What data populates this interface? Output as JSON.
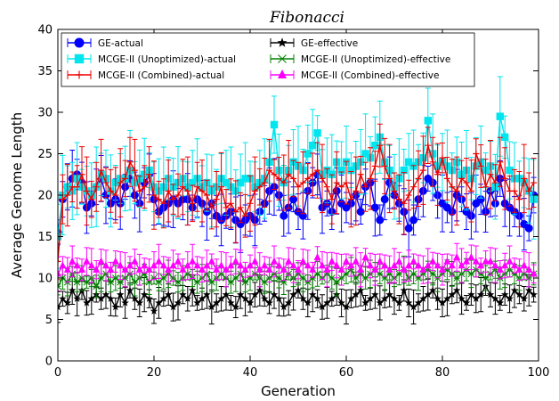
{
  "chart_data": {
    "type": "line",
    "title": "Fibonacci",
    "xlabel": "Generation",
    "ylabel": "Average Genome Length",
    "xlim": [
      0,
      100
    ],
    "ylim": [
      0,
      40
    ],
    "xticks": [
      0,
      20,
      40,
      60,
      80,
      100
    ],
    "yticks": [
      0,
      5,
      10,
      15,
      20,
      25,
      30,
      35,
      40
    ],
    "grid": false,
    "legend_position": "top",
    "x": [
      0,
      1,
      2,
      3,
      4,
      5,
      6,
      7,
      8,
      9,
      10,
      11,
      12,
      13,
      14,
      15,
      16,
      17,
      18,
      19,
      20,
      21,
      22,
      23,
      24,
      25,
      26,
      27,
      28,
      29,
      30,
      31,
      32,
      33,
      34,
      35,
      36,
      37,
      38,
      39,
      40,
      41,
      42,
      43,
      44,
      45,
      46,
      47,
      48,
      49,
      50,
      51,
      52,
      53,
      54,
      55,
      56,
      57,
      58,
      59,
      60,
      61,
      62,
      63,
      64,
      65,
      66,
      67,
      68,
      69,
      70,
      71,
      72,
      73,
      74,
      75,
      76,
      77,
      78,
      79,
      80,
      81,
      82,
      83,
      84,
      85,
      86,
      87,
      88,
      89,
      90,
      91,
      92,
      93,
      94,
      95,
      96,
      97,
      98,
      99
    ],
    "series": [
      {
        "name": "GE-actual",
        "color": "#0000ff",
        "marker": "circle",
        "values": [
          15.5,
          19.5,
          21.0,
          22.0,
          22.5,
          21.5,
          18.5,
          19.0,
          21.0,
          22.0,
          20.0,
          19.0,
          19.5,
          19.0,
          21.0,
          22.0,
          20.0,
          19.0,
          21.5,
          22.5,
          19.5,
          18.0,
          18.5,
          19.0,
          19.5,
          19.0,
          19.5,
          19.5,
          18.5,
          19.5,
          19.0,
          18.0,
          19.0,
          17.5,
          17.0,
          17.5,
          18.0,
          17.0,
          16.5,
          17.0,
          17.5,
          17.0,
          18.0,
          19.0,
          20.5,
          21.0,
          20.0,
          17.5,
          18.5,
          19.5,
          18.0,
          17.5,
          20.5,
          21.5,
          22.5,
          18.5,
          19.0,
          18.0,
          20.5,
          19.0,
          18.5,
          19.0,
          20.0,
          18.0,
          21.0,
          21.5,
          18.5,
          17.0,
          19.5,
          21.5,
          20.0,
          19.0,
          18.0,
          16.0,
          17.0,
          19.5,
          20.5,
          22.0,
          21.5,
          20.0,
          19.0,
          18.5,
          18.0,
          20.0,
          19.5,
          18.0,
          17.5,
          19.0,
          19.5,
          18.0,
          20.5,
          19.0,
          22.0,
          19.0,
          18.5,
          18.0,
          17.5,
          16.5,
          16.0,
          20.0
        ]
      },
      {
        "name": "MCGE-II (Unoptimized)-actual",
        "color": "#00e5ee",
        "marker": "square",
        "values": [
          15.0,
          20.0,
          21.0,
          20.5,
          22.0,
          21.0,
          20.5,
          20.0,
          21.0,
          22.5,
          22.0,
          20.5,
          21.5,
          22.0,
          22.0,
          23.0,
          21.5,
          22.0,
          22.5,
          23.0,
          21.0,
          20.5,
          21.0,
          22.0,
          21.0,
          21.5,
          22.0,
          21.0,
          21.5,
          22.0,
          21.0,
          21.5,
          20.5,
          21.0,
          22.0,
          21.5,
          21.0,
          20.5,
          21.5,
          22.0,
          22.0,
          21.0,
          21.5,
          22.0,
          24.0,
          28.5,
          23.0,
          21.5,
          23.0,
          24.0,
          23.5,
          23.0,
          25.0,
          26.0,
          27.5,
          22.5,
          23.0,
          22.5,
          24.0,
          23.0,
          24.0,
          23.0,
          23.5,
          24.0,
          25.0,
          24.5,
          26.0,
          27.0,
          24.0,
          23.0,
          21.0,
          22.0,
          23.0,
          24.0,
          23.5,
          24.0,
          24.5,
          29.0,
          25.0,
          23.5,
          24.0,
          23.5,
          23.0,
          24.0,
          22.5,
          23.0,
          22.0,
          23.5,
          24.0,
          23.0,
          23.5,
          21.0,
          29.5,
          27.0,
          23.0,
          22.0,
          22.0,
          21.5,
          20.5,
          19.5
        ]
      },
      {
        "name": "MCGE-II (Combined)-actual",
        "color": "#ee0000",
        "marker": "plus",
        "values": [
          12.0,
          19.5,
          20.0,
          21.0,
          21.0,
          22.5,
          20.5,
          19.5,
          21.0,
          23.0,
          21.5,
          20.5,
          20.0,
          21.5,
          22.0,
          24.0,
          23.0,
          20.5,
          21.0,
          22.5,
          20.0,
          19.5,
          19.0,
          20.5,
          19.5,
          20.0,
          21.0,
          20.5,
          19.0,
          21.0,
          20.5,
          20.0,
          18.5,
          19.5,
          21.0,
          18.5,
          19.0,
          18.0,
          18.5,
          17.5,
          19.0,
          20.5,
          21.0,
          21.5,
          23.0,
          22.5,
          22.0,
          21.5,
          22.5,
          22.0,
          21.0,
          21.5,
          22.0,
          22.5,
          23.0,
          22.0,
          21.0,
          19.5,
          21.5,
          21.0,
          21.5,
          19.5,
          20.5,
          22.5,
          21.0,
          22.0,
          23.5,
          26.0,
          23.5,
          22.0,
          20.5,
          19.5,
          19.0,
          20.0,
          21.0,
          22.0,
          23.0,
          26.0,
          24.0,
          22.5,
          24.5,
          22.0,
          21.0,
          20.5,
          22.0,
          21.5,
          20.5,
          25.0,
          23.5,
          21.0,
          22.5,
          21.5,
          24.0,
          22.0,
          20.5,
          20.5,
          19.5,
          22.0,
          20.5,
          21.5
        ]
      },
      {
        "name": "GE-effective",
        "color": "#000000",
        "marker": "star",
        "values": [
          6.5,
          7.5,
          7.0,
          8.5,
          7.5,
          8.5,
          7.0,
          7.5,
          8.0,
          7.5,
          8.0,
          7.5,
          6.5,
          8.0,
          7.0,
          8.5,
          7.5,
          7.0,
          8.0,
          7.5,
          6.0,
          7.0,
          7.5,
          8.0,
          6.5,
          7.0,
          8.0,
          7.5,
          8.5,
          7.0,
          7.5,
          8.0,
          6.5,
          7.0,
          7.5,
          8.0,
          7.0,
          6.5,
          8.0,
          7.5,
          7.0,
          8.0,
          8.5,
          7.5,
          7.0,
          8.0,
          7.5,
          6.5,
          7.0,
          8.0,
          8.5,
          7.5,
          7.0,
          8.0,
          7.5,
          6.5,
          7.0,
          7.5,
          8.0,
          7.0,
          6.5,
          7.5,
          8.0,
          8.5,
          7.0,
          7.5,
          8.0,
          7.0,
          7.5,
          8.0,
          7.5,
          7.0,
          8.5,
          7.0,
          6.5,
          7.0,
          7.5,
          8.0,
          8.5,
          7.5,
          7.0,
          7.5,
          8.0,
          8.5,
          7.5,
          7.0,
          8.0,
          7.5,
          8.0,
          9.0,
          8.0,
          7.5,
          7.0,
          8.0,
          7.5,
          8.5,
          8.0,
          7.5,
          8.5,
          8.0
        ]
      },
      {
        "name": "MCGE-II (Unoptimized)-effective",
        "color": "#008000",
        "marker": "asterisk",
        "values": [
          9.0,
          10.0,
          9.5,
          10.5,
          9.5,
          10.0,
          9.5,
          10.0,
          9.0,
          10.0,
          10.5,
          9.5,
          10.0,
          9.5,
          10.0,
          10.5,
          9.5,
          10.0,
          10.5,
          9.5,
          10.0,
          9.5,
          10.0,
          10.5,
          10.0,
          9.5,
          10.0,
          10.5,
          10.0,
          9.5,
          10.0,
          10.5,
          9.5,
          10.0,
          10.5,
          10.0,
          9.5,
          10.0,
          10.5,
          9.5,
          10.0,
          10.5,
          10.0,
          9.5,
          10.0,
          10.5,
          10.0,
          9.5,
          10.5,
          10.0,
          10.5,
          10.0,
          9.5,
          10.0,
          10.5,
          10.0,
          10.5,
          10.0,
          9.5,
          10.0,
          10.5,
          11.0,
          10.0,
          10.5,
          10.0,
          10.5,
          11.0,
          10.5,
          10.0,
          10.5,
          10.0,
          10.5,
          11.0,
          10.0,
          10.5,
          10.0,
          10.5,
          11.0,
          10.5,
          10.0,
          10.5,
          11.0,
          10.5,
          10.0,
          10.5,
          11.0,
          10.5,
          11.0,
          10.5,
          10.0,
          10.5,
          11.0,
          10.0,
          10.5,
          11.0,
          10.5,
          10.0,
          10.5,
          10.0,
          10.5
        ]
      },
      {
        "name": "MCGE-II (Combined)-effective",
        "color": "#ff00ff",
        "marker": "triangle",
        "values": [
          10.5,
          11.5,
          11.0,
          12.0,
          11.5,
          11.0,
          12.0,
          11.5,
          11.0,
          12.0,
          11.5,
          11.0,
          12.0,
          11.5,
          11.0,
          11.5,
          12.0,
          11.0,
          11.5,
          11.0,
          11.5,
          12.0,
          11.5,
          11.0,
          11.5,
          12.0,
          11.0,
          11.5,
          12.0,
          11.5,
          11.0,
          11.5,
          12.0,
          11.0,
          11.5,
          11.0,
          11.5,
          12.0,
          11.5,
          11.0,
          11.5,
          12.0,
          11.0,
          11.5,
          11.0,
          12.0,
          11.5,
          11.0,
          12.0,
          11.5,
          11.0,
          12.0,
          11.5,
          11.0,
          12.5,
          11.5,
          11.0,
          12.0,
          11.5,
          11.0,
          12.0,
          11.5,
          12.0,
          11.0,
          12.5,
          11.5,
          11.0,
          12.0,
          11.5,
          11.0,
          11.5,
          12.0,
          11.0,
          11.5,
          12.0,
          11.5,
          11.0,
          11.5,
          12.0,
          11.5,
          11.0,
          12.0,
          11.5,
          12.5,
          11.5,
          12.0,
          12.5,
          12.0,
          11.5,
          12.0,
          12.0,
          11.5,
          11.0,
          11.5,
          12.0,
          11.5,
          11.0,
          11.5,
          11.0,
          10.5
        ]
      }
    ]
  }
}
